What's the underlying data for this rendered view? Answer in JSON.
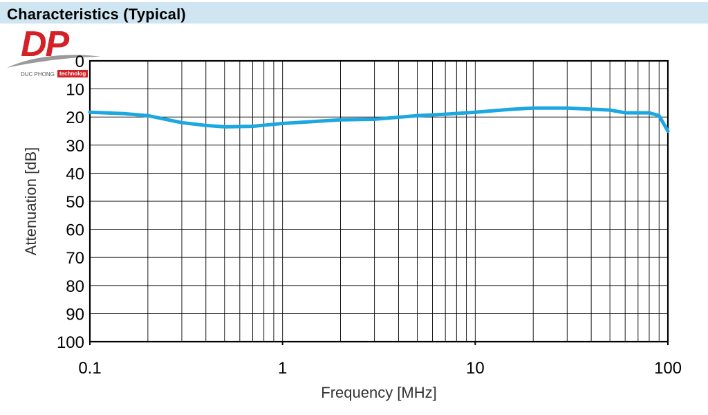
{
  "header": {
    "title": "Characteristics (Typical)"
  },
  "logo": {
    "letters": "DP",
    "company": "DUC PHONG",
    "tag": "technolog"
  },
  "colors": {
    "header_bg": "#cfe6f2",
    "series": "#1ca7e0",
    "logo_red": "#d42027"
  },
  "chart_data": {
    "type": "line",
    "title": "",
    "xlabel": "Frequency [MHz]",
    "ylabel": "Attenuation [dB]",
    "x_scale": "log",
    "xlim": [
      0.1,
      100
    ],
    "ylim": [
      0,
      100
    ],
    "y_inverted": true,
    "grid": true,
    "x_ticks": [
      0.1,
      1,
      10,
      100
    ],
    "x_tick_labels": [
      "0.1",
      "1",
      "10",
      "100"
    ],
    "y_ticks": [
      0,
      10,
      20,
      30,
      40,
      50,
      60,
      70,
      80,
      90,
      100
    ],
    "y_tick_labels": [
      "0",
      "10",
      "20",
      "30",
      "40",
      "50",
      "60",
      "70",
      "80",
      "90",
      "100"
    ],
    "series": [
      {
        "x": [
          0.1,
          0.15,
          0.2,
          0.3,
          0.4,
          0.5,
          0.7,
          1,
          2,
          3,
          5,
          7,
          10,
          15,
          20,
          30,
          50,
          60,
          80,
          90,
          100
        ],
        "y": [
          18.3,
          18.8,
          19.5,
          22.0,
          23.0,
          23.5,
          23.3,
          22.3,
          21.0,
          20.8,
          19.5,
          19.0,
          18.3,
          17.3,
          16.8,
          16.8,
          17.5,
          18.5,
          18.5,
          19.5,
          25.0
        ]
      }
    ]
  }
}
